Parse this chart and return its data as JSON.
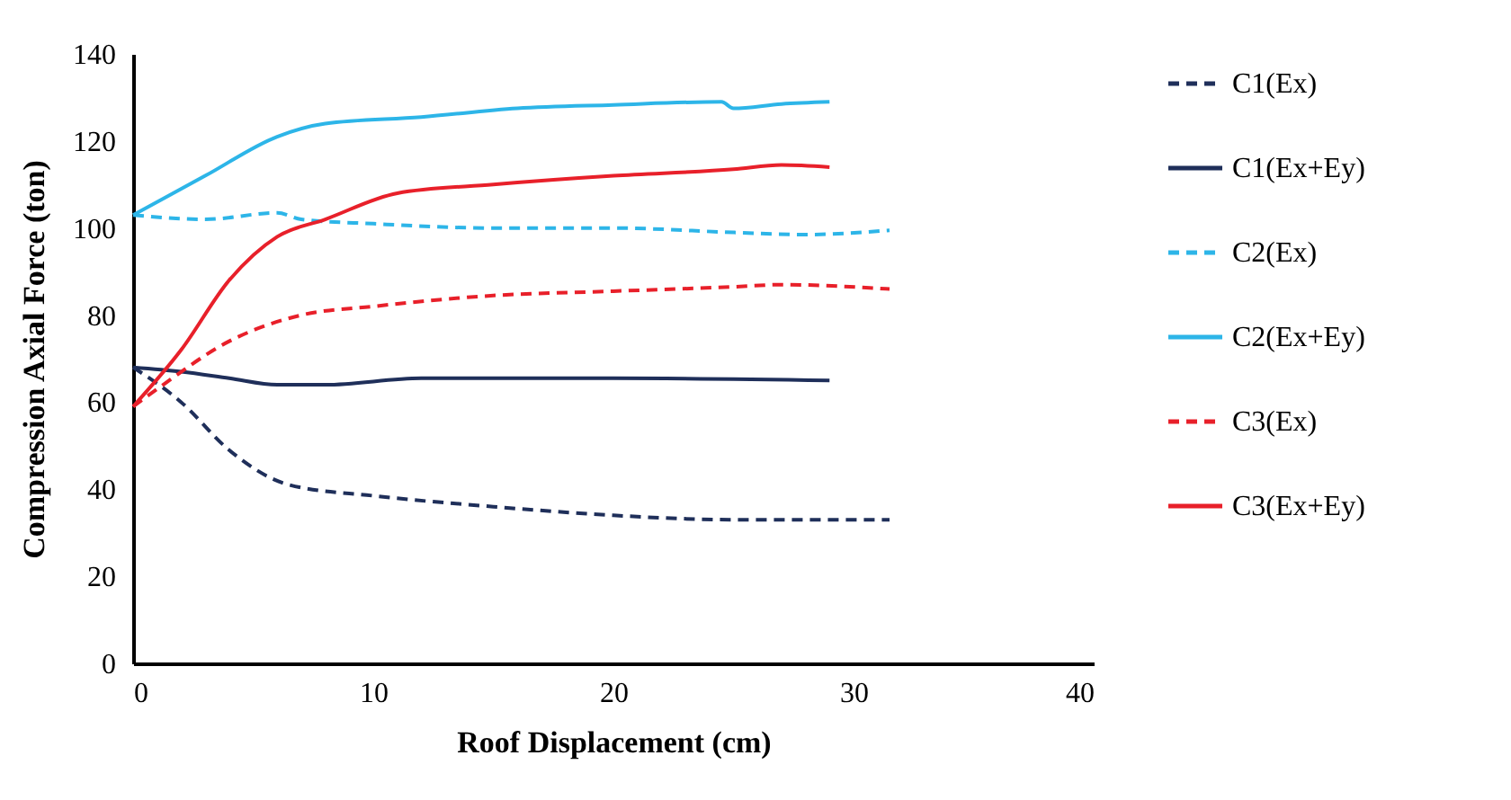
{
  "chart_data": {
    "type": "line",
    "xlabel": "Roof Displacement   (cm)",
    "ylabel": "Compression Axial Force (ton)",
    "xlim": [
      0,
      40
    ],
    "xticks": [
      0,
      10,
      20,
      30,
      40
    ],
    "ylim": [
      0,
      140
    ],
    "yticks": [
      0,
      20,
      40,
      60,
      80,
      100,
      120,
      140
    ],
    "grid": false,
    "legend": "right",
    "marker": "none",
    "series": [
      {
        "name": "C1(Ex)",
        "color": "#1f2f5a",
        "line_style": "dashed",
        "x": [
          0,
          2,
          4,
          6.5,
          10,
          15,
          20,
          25,
          31.5
        ],
        "values": [
          68,
          60,
          49,
          41,
          38.5,
          36,
          34,
          33,
          33
        ]
      },
      {
        "name": "C1(Ex+Ey)",
        "color": "#1f2f5a",
        "line_style": "solid",
        "x": [
          0,
          2,
          4,
          6,
          8,
          12,
          20,
          29
        ],
        "values": [
          68,
          67,
          65.5,
          64,
          64,
          65.5,
          65.5,
          65
        ]
      },
      {
        "name": "C2(Ex)",
        "color": "#2db5e8",
        "line_style": "dashed",
        "x": [
          0,
          3,
          6,
          7,
          10,
          15,
          20,
          25,
          28,
          31.5
        ],
        "values": [
          103,
          102,
          103.5,
          102,
          101,
          100,
          100,
          99,
          98.5,
          99.5
        ]
      },
      {
        "name": "C2(Ex+Ey)",
        "color": "#2db5e8",
        "line_style": "solid",
        "x": [
          0,
          3,
          6,
          8,
          12,
          16,
          20,
          24.5,
          25,
          27,
          29
        ],
        "values": [
          103,
          112,
          121,
          124,
          125.5,
          127.5,
          128.3,
          129,
          127.5,
          128.5,
          129
        ]
      },
      {
        "name": "C3(Ex)",
        "color": "#e8202a",
        "line_style": "dashed",
        "x": [
          0,
          1,
          4,
          7,
          10,
          15,
          20,
          25,
          27,
          31.5
        ],
        "values": [
          59,
          63,
          74,
          80,
          82,
          84.5,
          85.5,
          86.5,
          87,
          86
        ]
      },
      {
        "name": "C3(Ex+Ey)",
        "color": "#e8202a",
        "line_style": "solid",
        "x": [
          0,
          2,
          4,
          6,
          8,
          11,
          15,
          20,
          25,
          27,
          29
        ],
        "values": [
          59,
          72,
          88,
          98,
          102,
          108,
          110,
          112,
          113.5,
          114.5,
          114
        ]
      }
    ]
  }
}
